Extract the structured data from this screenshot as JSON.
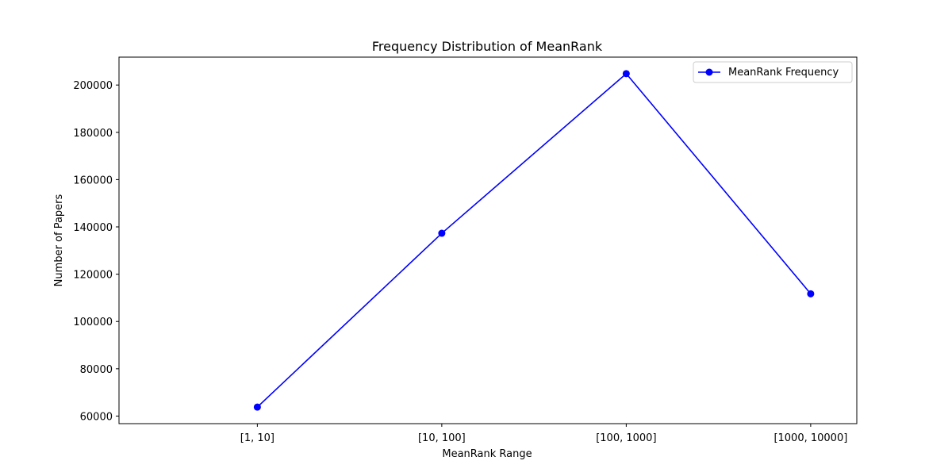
{
  "chart_data": {
    "type": "line",
    "title": "Frequency Distribution of MeanRank",
    "xlabel": "MeanRank Range",
    "ylabel": "Number of Papers",
    "categories": [
      "[1, 10]",
      "[10, 100]",
      "[100, 1000]",
      "[1000, 10000]"
    ],
    "series": [
      {
        "name": "MeanRank Frequency",
        "values": [
          63800,
          137300,
          204800,
          111700
        ],
        "color": "#0000ff",
        "marker": "circle"
      }
    ],
    "yticks": [
      60000,
      80000,
      100000,
      120000,
      140000,
      160000,
      180000,
      200000
    ],
    "ylim": [
      56800,
      211800
    ],
    "xlim": [
      -0.75,
      3.25
    ],
    "grid": false,
    "legend_position": "top-right"
  }
}
